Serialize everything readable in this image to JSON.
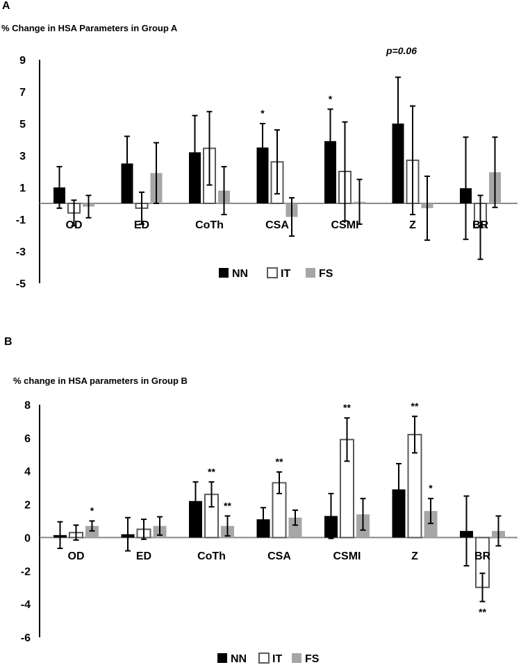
{
  "panels": {
    "a": {
      "letter": "A",
      "title": "% Change in HSA Parameters in Group A"
    },
    "b": {
      "letter": "B",
      "title": "% change in HSA parameters in Group B"
    }
  },
  "colors": {
    "NN": "#000000",
    "IT_fill": "#ffffff",
    "IT_stroke": "#595959",
    "FS": "#a6a6a6"
  },
  "chart_data": [
    {
      "type": "bar",
      "title": "% Change in HSA Parameters in Group A",
      "categories": [
        "OD",
        "ED",
        "CoTh",
        "CSA",
        "CSMI",
        "Z",
        "BR"
      ],
      "ylim": [
        -5,
        9
      ],
      "yticks": [
        9,
        7,
        5,
        3,
        1,
        -1,
        -3,
        -5
      ],
      "series": [
        {
          "name": "NN",
          "values": [
            1.0,
            2.5,
            3.2,
            3.5,
            3.9,
            5.0,
            0.95
          ],
          "errors": [
            1.3,
            1.7,
            2.3,
            1.5,
            2.0,
            2.9,
            3.2
          ]
        },
        {
          "name": "IT",
          "values": [
            -0.6,
            -0.3,
            3.45,
            2.6,
            2.0,
            2.7,
            -1.5
          ],
          "errors": [
            0.8,
            1.0,
            2.3,
            2.0,
            3.1,
            3.4,
            2.0
          ]
        },
        {
          "name": "FS",
          "values": [
            -0.2,
            1.9,
            0.8,
            -0.85,
            0.1,
            -0.3,
            1.95
          ],
          "errors": [
            0.7,
            1.9,
            1.5,
            1.2,
            1.4,
            2.0,
            2.2
          ]
        }
      ],
      "annotations": [
        {
          "category": "CSA",
          "series": "NN",
          "text": "*"
        },
        {
          "category": "CSMI",
          "series": "NN",
          "text": "*"
        }
      ],
      "p_label": "p=0.06",
      "legend": [
        "NN",
        "IT",
        "FS"
      ],
      "legend_position": "bottom-center"
    },
    {
      "type": "bar",
      "title": "% change in HSA parameters in Group B",
      "categories": [
        "OD",
        "ED",
        "CoTh",
        "CSA",
        "CSMI",
        "Z",
        "BR"
      ],
      "ylim": [
        -6,
        8
      ],
      "yticks": [
        8,
        6,
        4,
        2,
        0,
        -2,
        -4,
        -6
      ],
      "series": [
        {
          "name": "NN",
          "values": [
            0.15,
            0.2,
            2.2,
            1.1,
            1.3,
            2.9,
            0.4
          ],
          "errors": [
            0.8,
            1.0,
            1.15,
            0.7,
            1.35,
            1.55,
            2.1
          ]
        },
        {
          "name": "IT",
          "values": [
            0.3,
            0.5,
            2.6,
            3.3,
            5.9,
            6.2,
            -3.0
          ],
          "errors": [
            0.45,
            0.6,
            0.75,
            0.65,
            1.3,
            1.1,
            0.85
          ]
        },
        {
          "name": "FS",
          "values": [
            0.7,
            0.7,
            0.7,
            1.2,
            1.4,
            1.6,
            0.4
          ],
          "errors": [
            0.3,
            0.55,
            0.6,
            0.45,
            0.95,
            0.75,
            0.9
          ]
        }
      ],
      "annotations": [
        {
          "category": "OD",
          "series": "FS",
          "text": "*"
        },
        {
          "category": "CoTh",
          "series": "IT",
          "text": "**"
        },
        {
          "category": "CoTh",
          "series": "FS",
          "text": "**"
        },
        {
          "category": "CSA",
          "series": "IT",
          "text": "**"
        },
        {
          "category": "CSMI",
          "series": "IT",
          "text": "**"
        },
        {
          "category": "Z",
          "series": "IT",
          "text": "**"
        },
        {
          "category": "Z",
          "series": "FS",
          "text": "*"
        },
        {
          "category": "BR",
          "series": "IT",
          "text": "**",
          "placement": "below"
        }
      ],
      "legend": [
        "NN",
        "IT",
        "FS"
      ],
      "legend_position": "bottom-center"
    }
  ]
}
